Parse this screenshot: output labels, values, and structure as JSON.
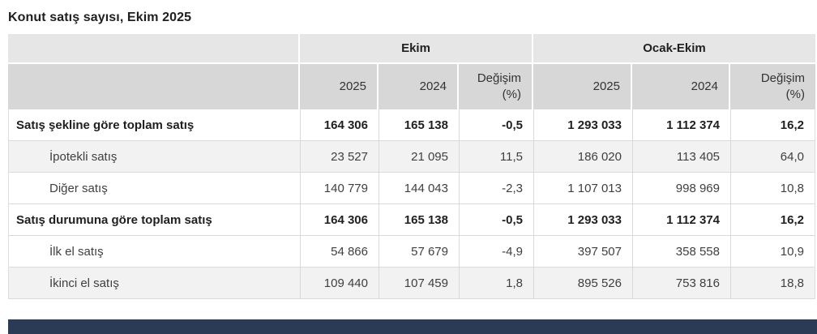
{
  "page_title": "Konut satış sayısı, Ekim 2025",
  "table": {
    "header": {
      "groups": [
        "Ekim",
        "Ocak-Ekim"
      ],
      "sub": {
        "year_current": "2025",
        "year_previous": "2024",
        "change_line1": "Değişim",
        "change_line2": "(%)"
      }
    },
    "rows": [
      {
        "label": "Satış şekline göre toplam satış",
        "bold": true,
        "indent": false,
        "shaded": false,
        "values": [
          "164 306",
          "165 138",
          "-0,5",
          "1 293 033",
          "1 112 374",
          "16,2"
        ]
      },
      {
        "label": "İpotekli satış",
        "bold": false,
        "indent": true,
        "shaded": true,
        "values": [
          "23 527",
          "21 095",
          "11,5",
          "186 020",
          "113 405",
          "64,0"
        ]
      },
      {
        "label": "Diğer satış",
        "bold": false,
        "indent": true,
        "shaded": false,
        "values": [
          "140 779",
          "144 043",
          "-2,3",
          "1 107 013",
          "998 969",
          "10,8"
        ]
      },
      {
        "label": "Satış durumuna göre toplam satış",
        "bold": true,
        "indent": false,
        "shaded": false,
        "values": [
          "164 306",
          "165 138",
          "-0,5",
          "1 293 033",
          "1 112 374",
          "16,2"
        ]
      },
      {
        "label": "İlk el satış",
        "bold": false,
        "indent": true,
        "shaded": false,
        "values": [
          "54 866",
          "57 679",
          "-4,9",
          "397 507",
          "358 558",
          "10,9"
        ]
      },
      {
        "label": "İkinci el satış",
        "bold": false,
        "indent": true,
        "shaded": true,
        "values": [
          "109 440",
          "107 459",
          "1,8",
          "895 526",
          "753 816",
          "18,8"
        ]
      }
    ]
  },
  "colors": {
    "header_row1_bg": "#e6e6e6",
    "header_row2_bg": "#d7d7d7",
    "shaded_row_bg": "#f2f2f2",
    "row_border": "#d9d9d9",
    "text": "#3f3f3f",
    "text_bold": "#1f1f1f",
    "footer_bar": "#2b3a55"
  }
}
